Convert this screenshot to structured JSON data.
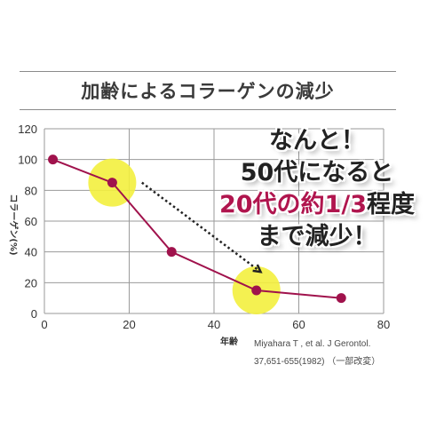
{
  "colors": {
    "line": "#a0124c",
    "highlight": "#f3ef3e",
    "grid": "#9a9a9a",
    "callout_accent": "#b0154e",
    "text": "#333333"
  },
  "title": "加齢によるコラーゲンの減少",
  "citation": {
    "line1": "Miyahara T , et al. J Gerontol.",
    "line2": "37,651-655(1982)  （一部改変）"
  },
  "callout": {
    "line1": "なんと！",
    "line2": "50代になると",
    "line3_accent": "20代の約1/3",
    "line3_rest": "程度",
    "line4": "まで減少！"
  },
  "chart_data": {
    "type": "line",
    "title": "加齢によるコラーゲンの減少",
    "xlabel": "年齢",
    "ylabel": "コラーゲン(%)",
    "xlim": [
      0,
      80
    ],
    "ylim": [
      0,
      120
    ],
    "x_ticks": [
      0,
      20,
      40,
      60,
      80
    ],
    "y_ticks": [
      0,
      20,
      40,
      60,
      80,
      100,
      120
    ],
    "grid": true,
    "series": [
      {
        "x": [
          2,
          16,
          30,
          50,
          70
        ],
        "y": [
          100,
          85,
          40,
          15,
          10
        ]
      }
    ],
    "highlighted_points_x": [
      16,
      50
    ],
    "arrow": {
      "from_x": 23,
      "from_y": 85,
      "to_x": 51,
      "to_y": 27
    }
  }
}
